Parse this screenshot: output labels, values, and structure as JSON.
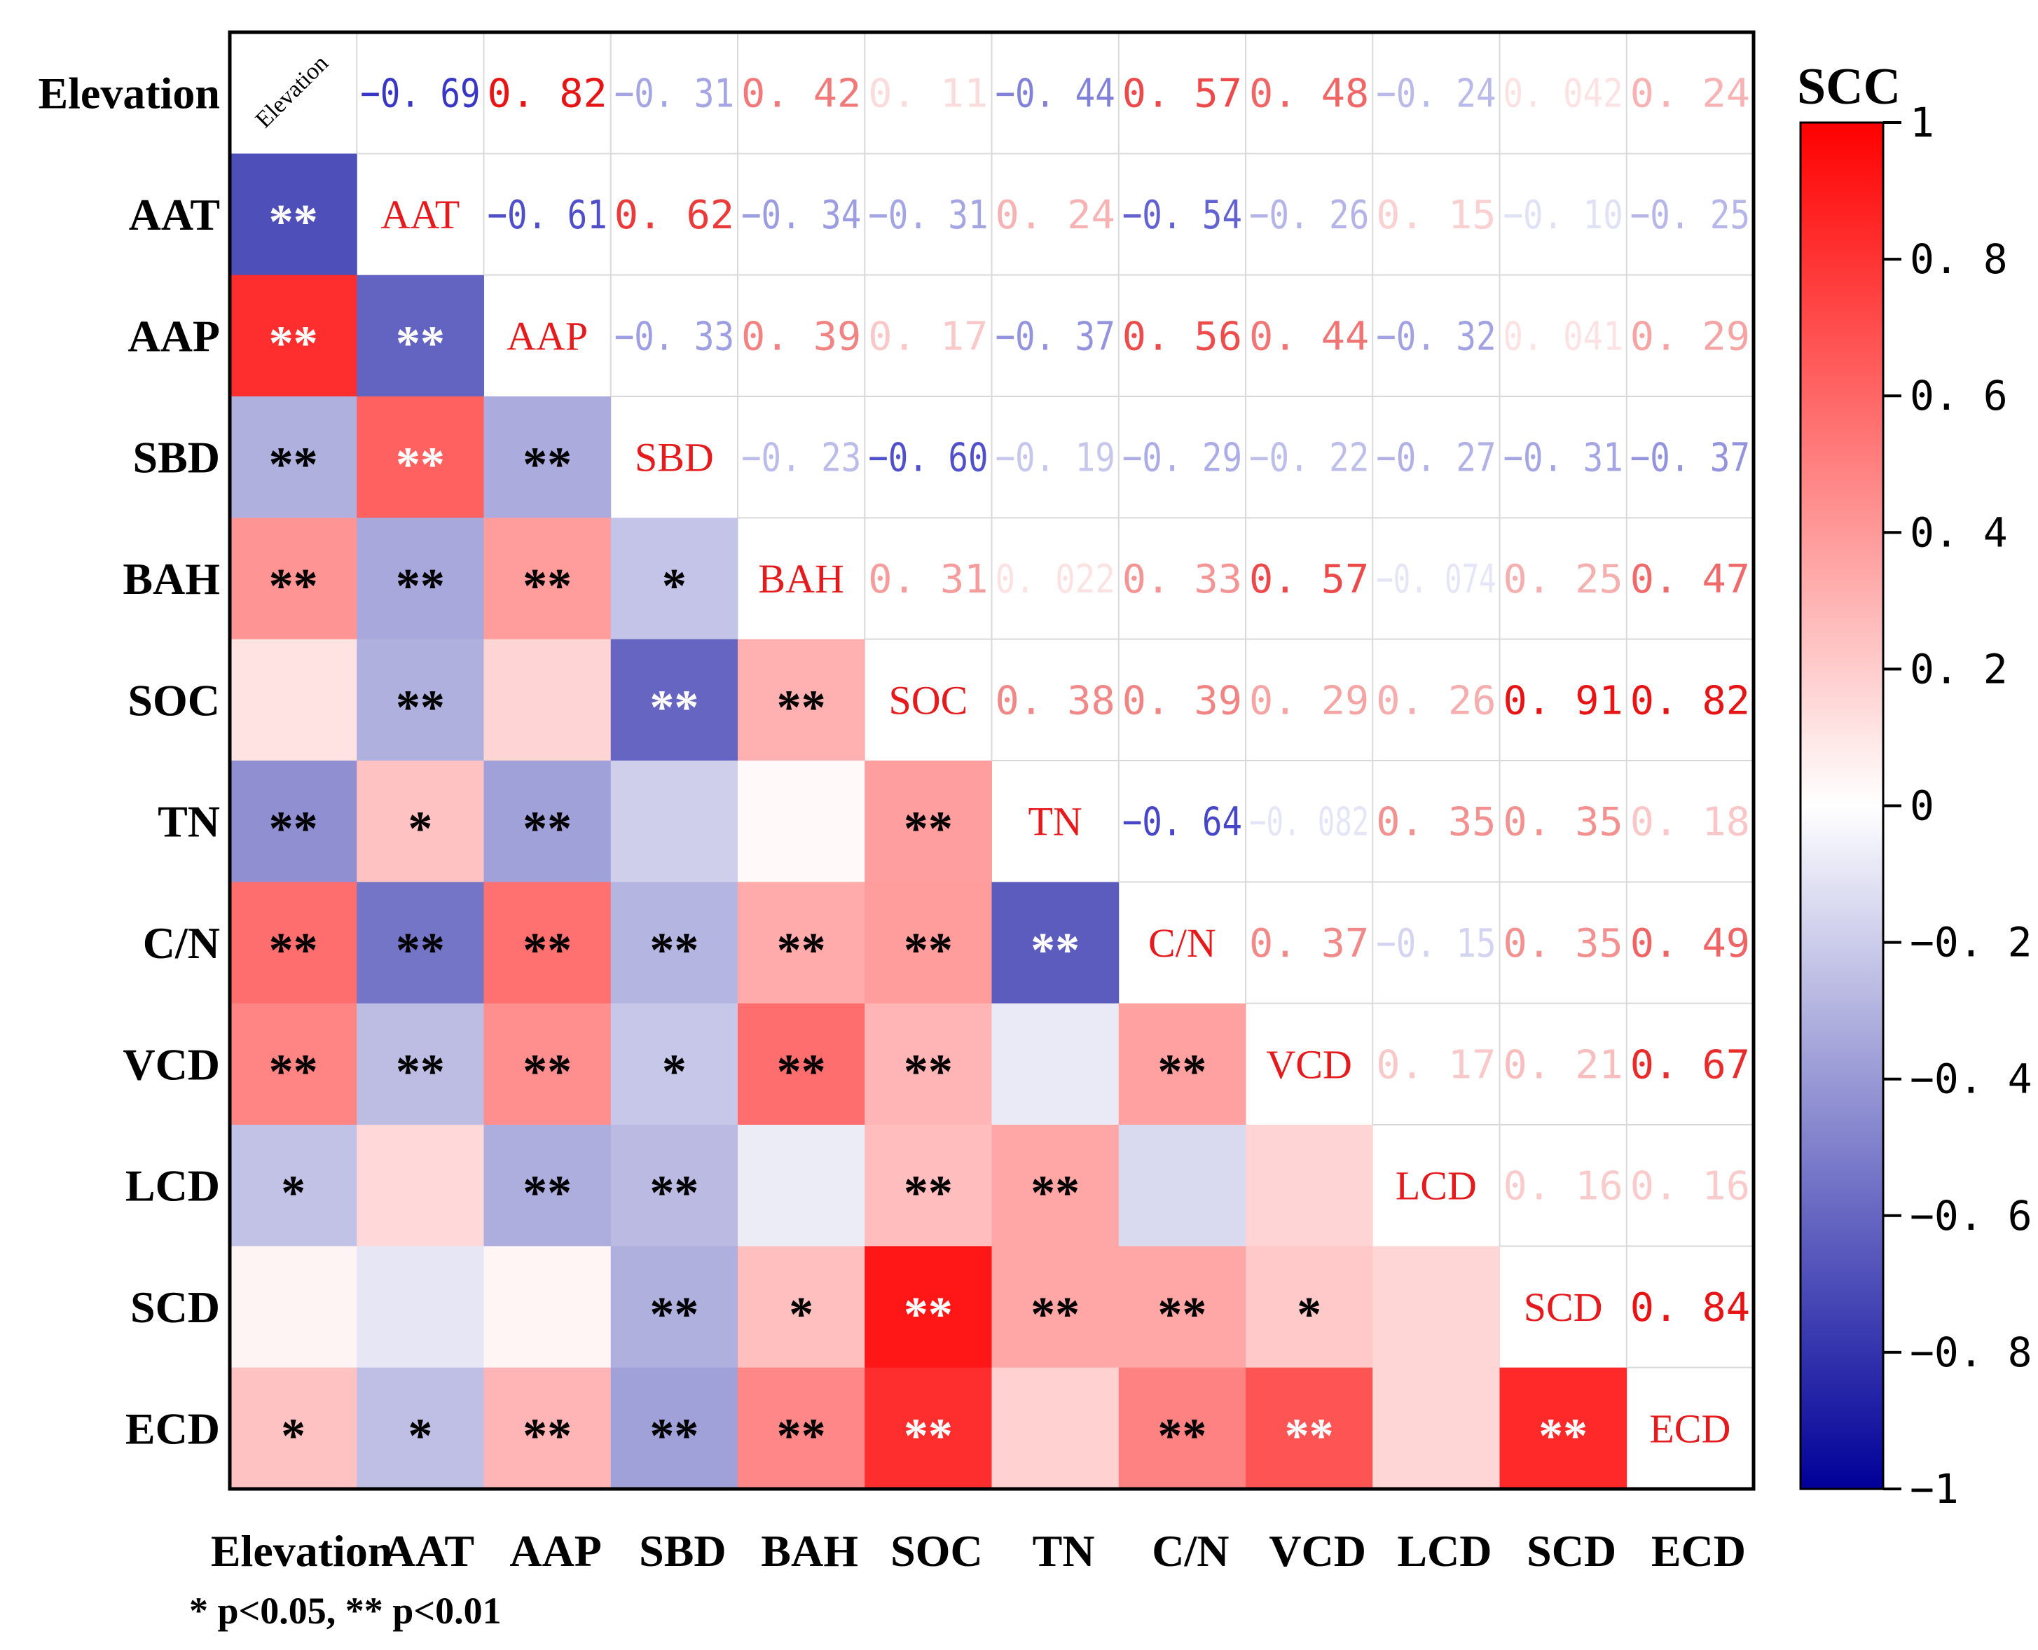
{
  "chart_data": {
    "type": "heatmap",
    "variables": [
      "Elevation",
      "AAT",
      "AAP",
      "SBD",
      "BAH",
      "SOC",
      "TN",
      "C/N",
      "VCD",
      "LCD",
      "SCD",
      "ECD"
    ],
    "upper_value_labels": [
      [
        null,
        "-0.69",
        "0.82",
        "-0.31",
        "0.42",
        "0.11",
        "-0.44",
        "0.57",
        "0.48",
        "-0.24",
        "0.042",
        "0.24"
      ],
      [
        null,
        null,
        "-0.61",
        "0.62",
        "-0.34",
        "-0.31",
        "0.24",
        "-0.54",
        "-0.26",
        "0.15",
        "-0.10",
        "-0.25"
      ],
      [
        null,
        null,
        null,
        "-0.33",
        "0.39",
        "0.17",
        "-0.37",
        "0.56",
        "0.44",
        "-0.32",
        "0.041",
        "0.29"
      ],
      [
        null,
        null,
        null,
        null,
        "-0.23",
        "-0.60",
        "-0.19",
        "-0.29",
        "-0.22",
        "-0.27",
        "-0.31",
        "-0.37"
      ],
      [
        null,
        null,
        null,
        null,
        null,
        "0.31",
        "0.022",
        "0.33",
        "0.57",
        "-0.074",
        "0.25",
        "0.47"
      ],
      [
        null,
        null,
        null,
        null,
        null,
        null,
        "0.38",
        "0.39",
        "0.29",
        "0.26",
        "0.91",
        "0.82"
      ],
      [
        null,
        null,
        null,
        null,
        null,
        null,
        null,
        "-0.64",
        "-0.082",
        "0.35",
        "0.35",
        "0.18"
      ],
      [
        null,
        null,
        null,
        null,
        null,
        null,
        null,
        null,
        "0.37",
        "-0.15",
        "0.35",
        "0.49"
      ],
      [
        null,
        null,
        null,
        null,
        null,
        null,
        null,
        null,
        null,
        "0.17",
        "0.21",
        "0.67"
      ],
      [
        null,
        null,
        null,
        null,
        null,
        null,
        null,
        null,
        null,
        null,
        "0.16",
        "0.16"
      ],
      [
        null,
        null,
        null,
        null,
        null,
        null,
        null,
        null,
        null,
        null,
        null,
        "0.84"
      ],
      [
        null,
        null,
        null,
        null,
        null,
        null,
        null,
        null,
        null,
        null,
        null,
        null
      ]
    ],
    "significance": [
      [
        null,
        "**",
        "**",
        "**",
        "**",
        "",
        "**",
        "**",
        "**",
        "*",
        "",
        "*"
      ],
      [
        "**",
        null,
        "**",
        "**",
        "**",
        "**",
        "*",
        "**",
        "**",
        "",
        "",
        "*"
      ],
      [
        "**",
        "**",
        null,
        "**",
        "**",
        "",
        "**",
        "**",
        "**",
        "**",
        "",
        "**"
      ],
      [
        "**",
        "**",
        "**",
        null,
        "*",
        "**",
        "",
        "**",
        "*",
        "**",
        "**",
        "**"
      ],
      [
        "**",
        "**",
        "**",
        "*",
        null,
        "**",
        "",
        "**",
        "**",
        "",
        "*",
        "**"
      ],
      [
        "",
        "**",
        "",
        "**",
        "**",
        null,
        "**",
        "**",
        "**",
        "**",
        "**",
        "**"
      ],
      [
        "**",
        "*",
        "**",
        "",
        "",
        "**",
        null,
        "**",
        "",
        "**",
        "**",
        ""
      ],
      [
        "**",
        "**",
        "**",
        "**",
        "**",
        "**",
        "**",
        null,
        "**",
        "",
        "**",
        "**"
      ],
      [
        "**",
        "**",
        "**",
        "*",
        "**",
        "**",
        "",
        "**",
        null,
        "",
        "*",
        "**"
      ],
      [
        "*",
        "",
        "**",
        "**",
        "",
        "**",
        "**",
        "",
        "",
        null,
        "",
        ""
      ],
      [
        "",
        "",
        "",
        "**",
        "*",
        "**",
        "**",
        "**",
        "*",
        "",
        null,
        "**"
      ],
      [
        "*",
        "*",
        "**",
        "**",
        "**",
        "**",
        "",
        "**",
        "**",
        "",
        "**",
        null
      ]
    ],
    "colorbar": {
      "title": "SCC",
      "range": [
        -1,
        1
      ],
      "ticks": [
        "1",
        "0.8",
        "0.6",
        "0.4",
        "0.2",
        "0",
        "-0.2",
        "-0.4",
        "-0.6",
        "-0.8",
        "-1"
      ],
      "tick_values": [
        1,
        0.8,
        0.6,
        0.4,
        0.2,
        0,
        -0.2,
        -0.4,
        -0.6,
        -0.8,
        -1
      ],
      "colors": {
        "negative": "#000099",
        "mid": "#ffffff",
        "positive": "#ff0000"
      }
    },
    "footnote": "* p<0.05, ** p<0.01"
  }
}
